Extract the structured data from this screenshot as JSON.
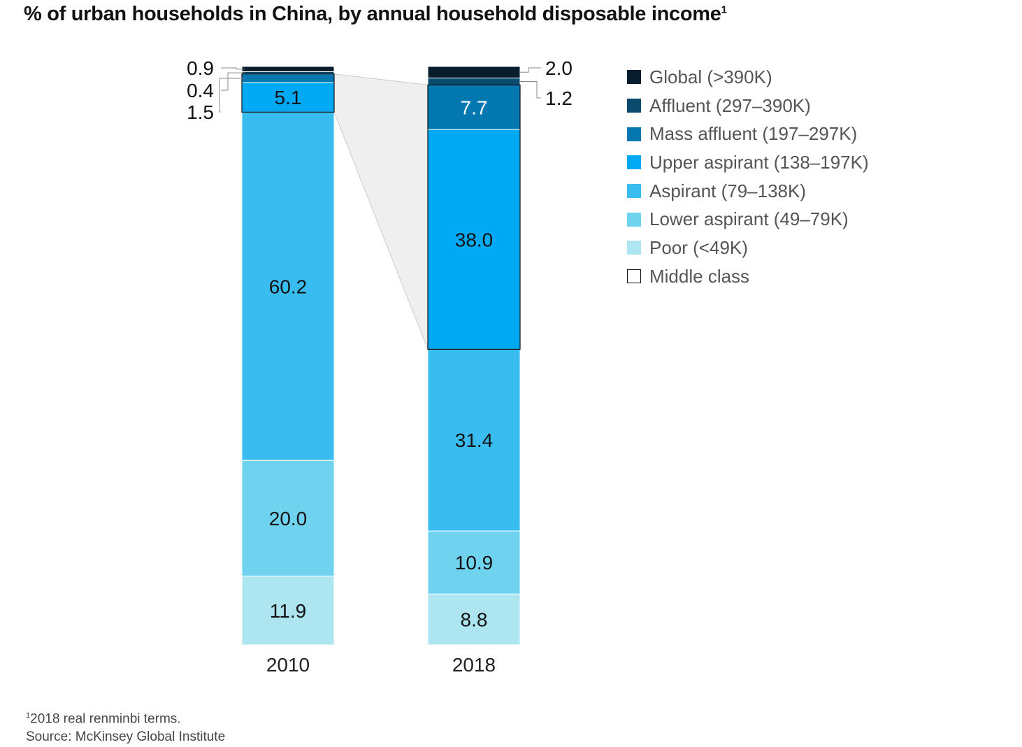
{
  "title": "% of urban households in China, by annual household disposable income",
  "title_footnote_mark": "1",
  "footnote": {
    "mark": "1",
    "text": "2018 real renminbi terms.",
    "source": "Source: McKinsey Global Institute"
  },
  "chart_data": {
    "type": "bar",
    "stacked": true,
    "categories": [
      "2010",
      "2018"
    ],
    "ylim": [
      0,
      100
    ],
    "grid": false,
    "legend_placement": "right",
    "series": [
      {
        "name": "Poor (<49K)",
        "color": "#ade6f0",
        "values": [
          11.9,
          8.8
        ],
        "labels": [
          "11.9",
          "8.8"
        ]
      },
      {
        "name": "Lower aspirant (49–79K)",
        "color": "#6fd3f0",
        "values": [
          20.0,
          10.9
        ],
        "labels": [
          "20.0",
          "10.9"
        ]
      },
      {
        "name": "Aspirant (79–138K)",
        "color": "#39bdf0",
        "values": [
          60.2,
          31.4
        ],
        "labels": [
          "60.2",
          "31.4"
        ]
      },
      {
        "name": "Upper aspirant (138–197K)",
        "color": "#00a9f4",
        "values": [
          5.1,
          38.0
        ],
        "labels": [
          "5.1",
          "38.0"
        ]
      },
      {
        "name": "Mass affluent (197–297K)",
        "color": "#0277b0",
        "values": [
          1.5,
          7.7
        ],
        "labels": [
          "1.5",
          "7.7"
        ]
      },
      {
        "name": "Affluent (297–390K)",
        "color": "#0a4a6e",
        "values": [
          0.4,
          1.2
        ],
        "labels": [
          "0.4",
          "1.2"
        ]
      },
      {
        "name": "Global (>390K)",
        "color": "#071d2e",
        "values": [
          0.9,
          2.0
        ],
        "labels": [
          "0.9",
          "2.0"
        ]
      }
    ],
    "middle_class": {
      "name": "Middle class",
      "includes": [
        "Upper aspirant (138–197K)",
        "Mass affluent (197–297K)"
      ]
    }
  }
}
